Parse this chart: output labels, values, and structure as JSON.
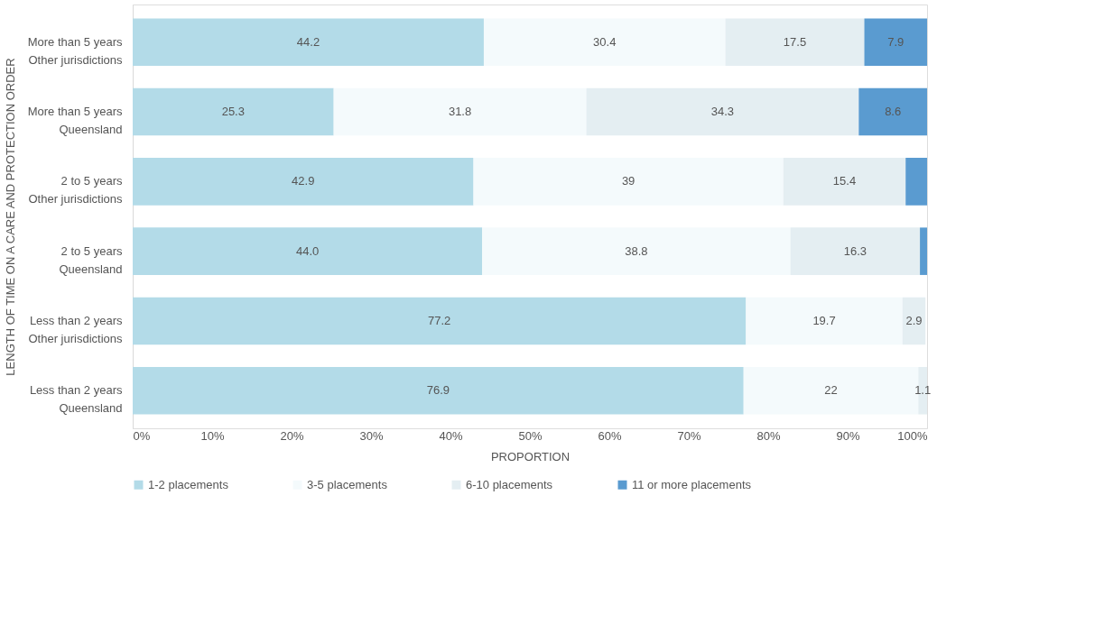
{
  "chart_data": {
    "type": "bar",
    "orientation": "horizontal",
    "stacked": true,
    "categories": [
      "More than 5 years\nOther jurisdictions",
      "More than 5 years\nQueensland",
      "2 to 5 years\nOther jurisdictions",
      "2 to 5 years\nQueensland",
      "Less than 2 years\nOther jurisdictions",
      "Less than 2 years\nQueensland"
    ],
    "series": [
      {
        "name": "1-2 placements",
        "color": "#b3dbe8",
        "values": [
          44.2,
          25.3,
          42.9,
          44.0,
          77.2,
          76.9
        ],
        "value_labels": [
          "44.2",
          "25.3",
          "42.9",
          "44.0",
          "77.2",
          "76.9"
        ]
      },
      {
        "name": "3-5 placements",
        "color": "#f4fafc",
        "values": [
          30.4,
          31.8,
          39,
          38.8,
          19.7,
          22
        ],
        "value_labels": [
          "30.4",
          "31.8",
          "39",
          "38.8",
          "19.7",
          "22"
        ]
      },
      {
        "name": "6-10 placements",
        "color": "#e4eef2",
        "values": [
          17.5,
          34.3,
          15.4,
          16.3,
          2.9,
          1.1
        ],
        "value_labels": [
          "17.5",
          "34.3",
          "15.4",
          "16.3",
          "2.9",
          "1.1"
        ]
      },
      {
        "name": "11 or more placements",
        "color": "#5a9bd0",
        "values": [
          7.9,
          8.6,
          2.7,
          0.9,
          0,
          0
        ],
        "value_labels": [
          "7.9",
          "8.6",
          null,
          null,
          null,
          null
        ]
      }
    ],
    "xlabel": "PROPORTION",
    "ylabel": "LENGTH OF TIME ON A CARE AND PROTECTION ORDER",
    "xlim": [
      0,
      100
    ],
    "xticks": [
      {
        "value": 0,
        "label": "0%"
      },
      {
        "value": 10,
        "label": "10%"
      },
      {
        "value": 20,
        "label": "20%"
      },
      {
        "value": 30,
        "label": "30%"
      },
      {
        "value": 40,
        "label": "40%"
      },
      {
        "value": 50,
        "label": "50%"
      },
      {
        "value": 60,
        "label": "60%"
      },
      {
        "value": 70,
        "label": "70%"
      },
      {
        "value": 80,
        "label": "80%"
      },
      {
        "value": 90,
        "label": "90%"
      },
      {
        "value": 100,
        "label": "100%"
      }
    ],
    "legend": "bottom",
    "grid": false
  }
}
